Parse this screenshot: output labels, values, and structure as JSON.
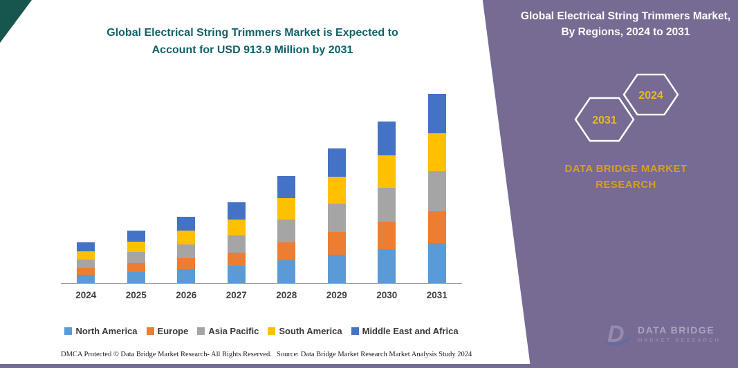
{
  "page": {
    "accent_purple": "#776a93",
    "accent_teal": "#17554f",
    "title_color": "#0f6068",
    "gold": "#d4a21c"
  },
  "left_panel": {
    "title": "Global Electrical String Trimmers Market is Expected to Account for USD 913.9 Million by 2031"
  },
  "right_panel": {
    "title": "Global Electrical String Trimmers Market, By Regions, 2024 to 2031",
    "badges": {
      "back": "2031",
      "front": "2024"
    },
    "brand": {
      "line1": "DATA BRIDGE MARKET",
      "line2": "RESEARCH"
    },
    "watermark": {
      "logo_letter": "D",
      "line1": "DATA BRIDGE",
      "line2": "MARKET RESEARCH"
    }
  },
  "footer": {
    "dmca": "DMCA Protected © Data Bridge Market Research-  All Rights Reserved.",
    "source": "Source: Data Bridge Market Research  Market Analysis Study 2024"
  },
  "chart_data": {
    "type": "bar",
    "stacked": true,
    "title": "Global Electrical String Trimmers Market is Expected to Account for USD 913.9 Million by 2031",
    "xlabel": "",
    "ylabel": "",
    "y_axis_visible": false,
    "grid": false,
    "legend_position": "bottom",
    "ylim": [
      0,
      1000
    ],
    "unit": "USD Million",
    "categories": [
      "2024",
      "2025",
      "2026",
      "2027",
      "2028",
      "2029",
      "2030",
      "2031"
    ],
    "series": [
      {
        "name": "North America",
        "color": "#5B9BD5",
        "values": [
          41,
          53,
          67,
          82,
          109,
          137,
          164,
          192
        ]
      },
      {
        "name": "Europe",
        "color": "#ED7D31",
        "values": [
          33,
          43,
          54,
          66,
          88,
          111,
          133,
          155
        ]
      },
      {
        "name": "Asia Pacific",
        "color": "#A5A5A5",
        "values": [
          41,
          53,
          67,
          82,
          109,
          137,
          164,
          192
        ]
      },
      {
        "name": "South America",
        "color": "#FFC000",
        "values": [
          39,
          50,
          64,
          78,
          104,
          130,
          156,
          183
        ]
      },
      {
        "name": "Middle East and Africa",
        "color": "#4472C4",
        "values": [
          42,
          53,
          67,
          81,
          108,
          136,
          164,
          191.9
        ]
      }
    ],
    "totals": [
      196,
      252,
      319,
      389,
      518,
      651,
      781,
      913.9
    ]
  }
}
